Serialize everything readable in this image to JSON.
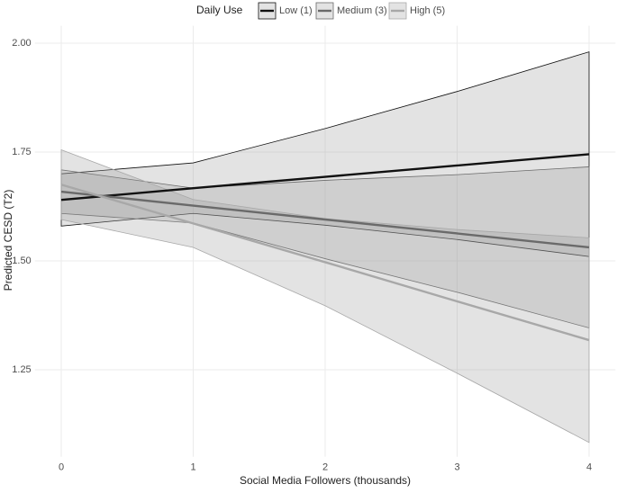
{
  "chart_data": {
    "type": "band-line",
    "legend_title": "Daily Use",
    "legend_position": "top",
    "x_label": "Social Media Followers (thousands)",
    "y_label": "Predicted CESD (T2)",
    "x": [
      0,
      1,
      2,
      3,
      4
    ],
    "series": [
      {
        "name": "Low (1)",
        "color": "#111111",
        "values": [
          1.64,
          1.667,
          1.693,
          1.719,
          1.745
        ],
        "lower": [
          1.58,
          1.609,
          1.582,
          1.549,
          1.51
        ],
        "upper": [
          1.7,
          1.725,
          1.804,
          1.889,
          1.98
        ]
      },
      {
        "name": "Medium (3)",
        "color": "#6a6a6a",
        "values": [
          1.659,
          1.627,
          1.595,
          1.563,
          1.531
        ],
        "lower": [
          1.609,
          1.587,
          1.505,
          1.428,
          1.346
        ],
        "upper": [
          1.709,
          1.667,
          1.685,
          1.698,
          1.716
        ]
      },
      {
        "name": "High (5)",
        "color": "#a8a8a8",
        "values": [
          1.675,
          1.586,
          1.497,
          1.407,
          1.318
        ],
        "lower": [
          1.595,
          1.531,
          1.397,
          1.242,
          1.083
        ],
        "upper": [
          1.755,
          1.641,
          1.597,
          1.572,
          1.553
        ]
      }
    ],
    "xlim": [
      -0.2,
      4.2
    ],
    "xticks": [
      0,
      1,
      2,
      3,
      4
    ],
    "ylim": [
      1.05,
      2.04
    ],
    "yticks": [
      {
        "value": 1.25,
        "label": "1.25"
      },
      {
        "value": 1.5,
        "label": "1.50"
      },
      {
        "value": 1.75,
        "label": "1.75"
      },
      {
        "value": 2,
        "label": "2.00"
      }
    ],
    "grid": true
  }
}
